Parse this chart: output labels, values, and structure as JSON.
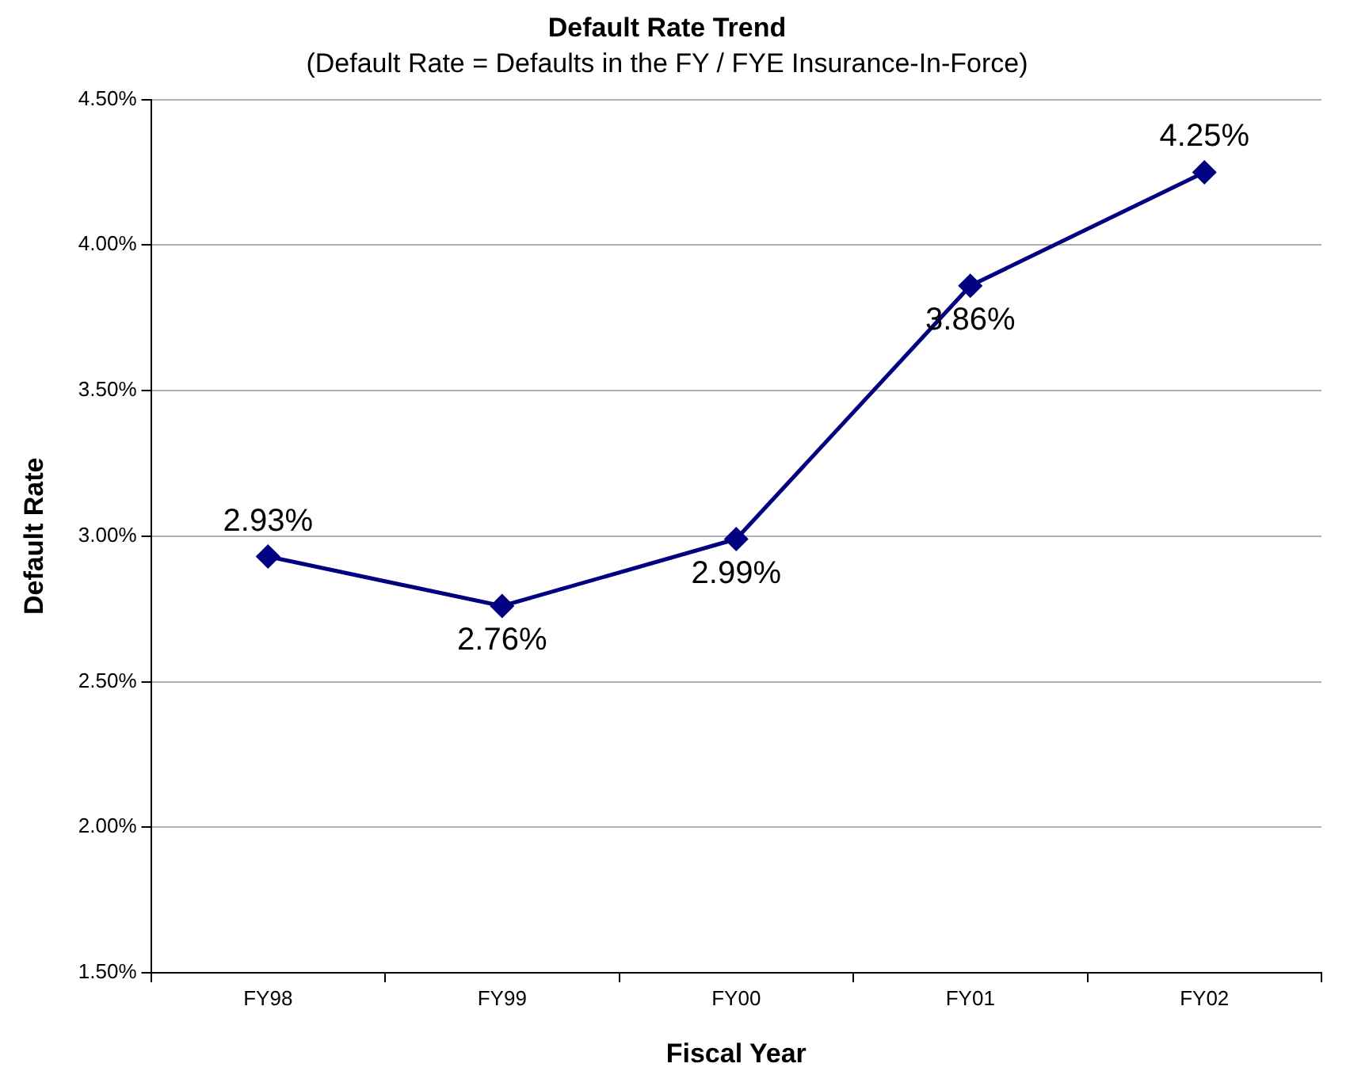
{
  "chart_data": {
    "type": "line",
    "title": "Default Rate Trend",
    "subtitle": "(Default Rate = Defaults in the FY / FYE Insurance-In-Force)",
    "xlabel": "Fiscal Year",
    "ylabel": "Default Rate",
    "categories": [
      "FY98",
      "FY99",
      "FY00",
      "FY01",
      "FY02"
    ],
    "series": [
      {
        "color": "#000080",
        "values": [
          2.93,
          2.76,
          2.99,
          3.86,
          4.25
        ],
        "value_labels": [
          "2.93%",
          "2.76%",
          "2.99%",
          "3.86%",
          "4.25%"
        ]
      }
    ],
    "ylim": [
      1.5,
      4.5
    ],
    "yticks": [
      {
        "value": 1.5,
        "label": "1.50%"
      },
      {
        "value": 2,
        "label": "2.00%"
      },
      {
        "value": 2.5,
        "label": "2.50%"
      },
      {
        "value": 3,
        "label": "3.00%"
      },
      {
        "value": 3.5,
        "label": "3.50%"
      },
      {
        "value": 4,
        "label": "4.00%"
      },
      {
        "value": 4.5,
        "label": "4.50%"
      }
    ],
    "grid": "y",
    "legend": false,
    "marker": "diamond",
    "line_style": "solid"
  }
}
